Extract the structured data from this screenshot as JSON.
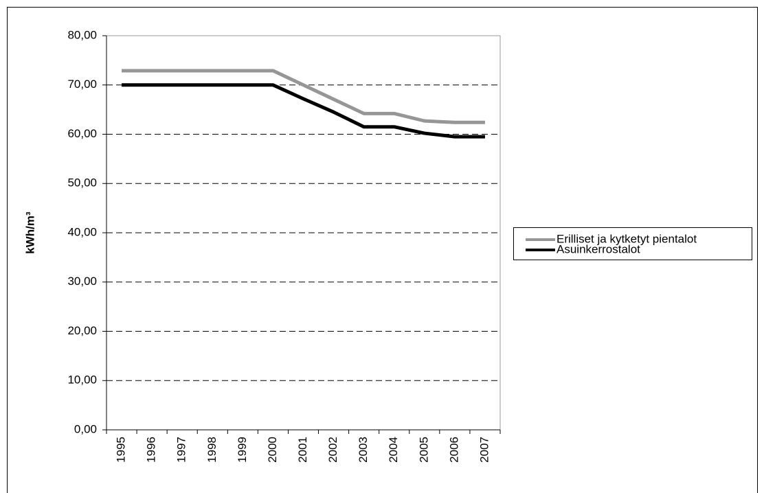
{
  "chart_data": {
    "type": "line",
    "y_label": "kWh/m³",
    "categories": [
      "1995",
      "1996",
      "1997",
      "1998",
      "1999",
      "2000",
      "2001",
      "2002",
      "2003",
      "2004",
      "2005",
      "2006",
      "2007"
    ],
    "series": [
      {
        "name": "Erilliset ja kytketyt pientalot",
        "color": "#969696",
        "values": [
          72.9,
          72.9,
          72.9,
          72.9,
          72.9,
          72.9,
          70.0,
          67.1,
          64.2,
          64.2,
          62.7,
          62.4,
          62.4
        ]
      },
      {
        "name": "Asuinkerrostalot",
        "color": "#000000",
        "values": [
          70.0,
          70.0,
          70.0,
          70.0,
          70.0,
          70.0,
          67.2,
          64.5,
          61.5,
          61.5,
          60.2,
          59.5,
          59.5
        ]
      }
    ],
    "ylim": [
      0,
      80
    ],
    "yticks": [
      {
        "value": 0,
        "label": "0,00"
      },
      {
        "value": 10,
        "label": "10,00"
      },
      {
        "value": 20,
        "label": "20,00"
      },
      {
        "value": 30,
        "label": "30,00"
      },
      {
        "value": 40,
        "label": "40,00"
      },
      {
        "value": 50,
        "label": "50,00"
      },
      {
        "value": 60,
        "label": "60,00"
      },
      {
        "value": 70,
        "label": "70,00"
      },
      {
        "value": 80,
        "label": "80,00"
      }
    ],
    "grid": true,
    "legend": "right"
  }
}
